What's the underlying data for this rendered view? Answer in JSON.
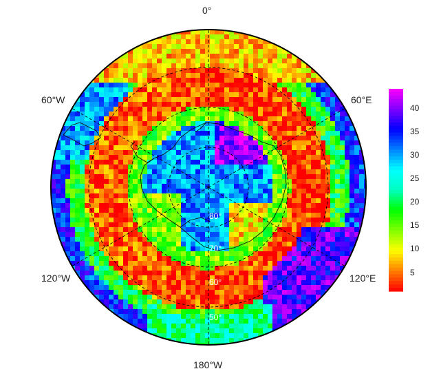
{
  "map": {
    "projection": "south-polar-stereographic",
    "longitude_labels": {
      "top": "0°",
      "upper_left": "60°W",
      "upper_right": "60°E",
      "lower_left": "120°W",
      "lower_right": "120°E",
      "bottom": "180°W"
    },
    "latitude_labels": [
      "80°",
      "70°",
      "60°",
      "50°"
    ],
    "colorbar": {
      "ticks": [
        "40",
        "35",
        "30",
        "25",
        "20",
        "15",
        "10",
        "5"
      ],
      "min": 1,
      "max": 44,
      "colors": [
        "#ff0000",
        "#ff8000",
        "#ffff00",
        "#80ff00",
        "#00ff00",
        "#00ffc0",
        "#00ffff",
        "#0080ff",
        "#0000ff",
        "#8000ff",
        "#ff00ff"
      ]
    }
  }
}
